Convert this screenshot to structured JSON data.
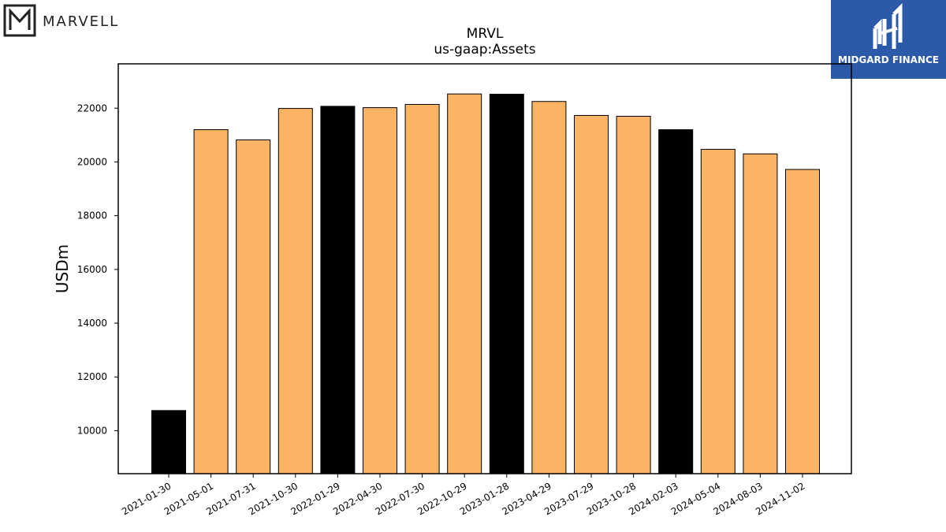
{
  "branding": {
    "left_logo_text": "MARVELL",
    "right_logo_text": "MIDGARD FINANCE",
    "right_logo_bg": "#2d5aa8"
  },
  "chart_data": {
    "type": "bar",
    "title": "MRVL",
    "subtitle": "us-gaap:Assets",
    "xlabel": "",
    "ylabel": "USDm",
    "ylim": [
      8400,
      23650
    ],
    "yticks": [
      10000,
      12000,
      14000,
      16000,
      18000,
      20000,
      22000
    ],
    "grid": false,
    "categories": [
      "2021-01-30",
      "2021-05-01",
      "2021-07-31",
      "2021-10-30",
      "2022-01-29",
      "2022-04-30",
      "2022-07-30",
      "2022-10-29",
      "2023-01-28",
      "2023-04-29",
      "2023-07-29",
      "2023-10-28",
      "2024-02-03",
      "2024-05-04",
      "2024-08-03",
      "2024-11-02"
    ],
    "values": [
      10750,
      21200,
      20820,
      21990,
      22070,
      22020,
      22140,
      22530,
      22520,
      22250,
      21730,
      21700,
      21200,
      20470,
      20300,
      19720
    ],
    "bar_colors": [
      "#000000",
      "#fbb463",
      "#fbb463",
      "#fbb463",
      "#000000",
      "#fbb463",
      "#fbb463",
      "#fbb463",
      "#000000",
      "#fbb463",
      "#fbb463",
      "#fbb463",
      "#000000",
      "#fbb463",
      "#fbb463",
      "#fbb463"
    ]
  }
}
